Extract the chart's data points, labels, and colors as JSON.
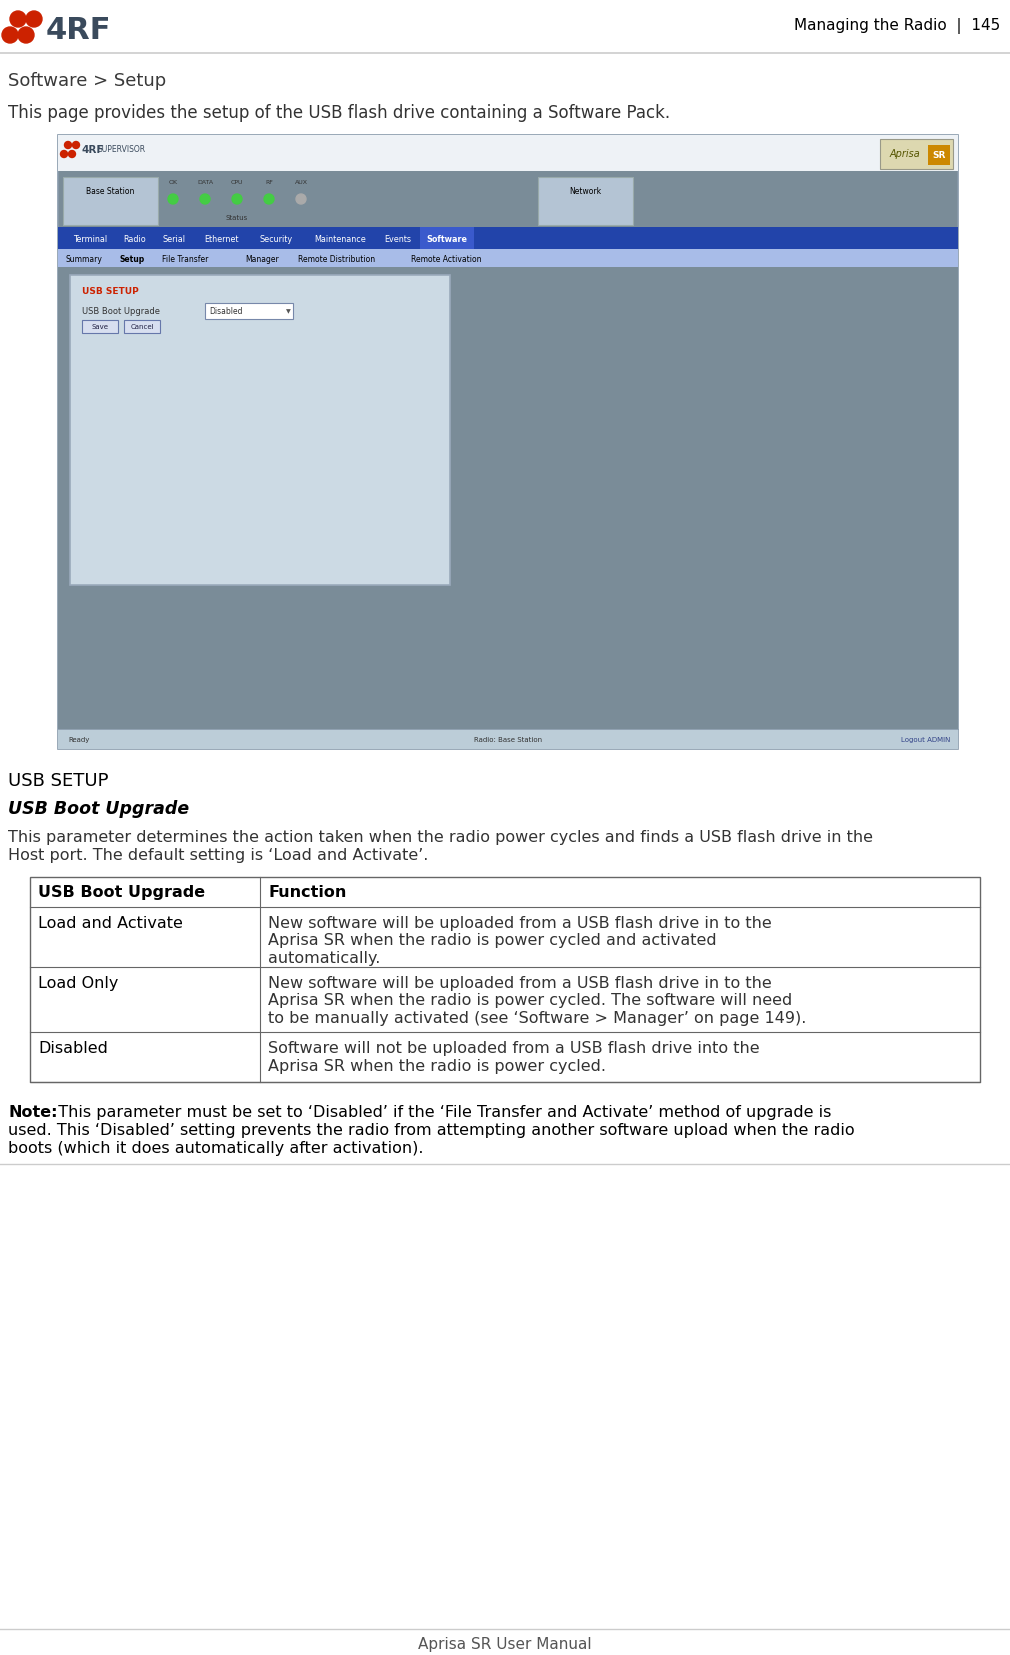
{
  "page_title_right": "Managing the Radio  |  145",
  "section_title": "Software > Setup",
  "intro_text": "This page provides the setup of the USB flash drive containing a Software Pack.",
  "usb_setup_heading": "USB SETUP",
  "usb_boot_heading": "USB Boot Upgrade",
  "desc_line1": "This parameter determines the action taken when the radio power cycles and finds a USB flash drive in the",
  "desc_line2": "Host port. The default setting is ‘Load and Activate’.",
  "table_headers": [
    "USB Boot Upgrade",
    "Function"
  ],
  "table_rows": [
    [
      "Load and Activate",
      [
        "New software will be uploaded from a USB flash drive in to the",
        "Aprisa SR when the radio is power cycled and activated",
        "automatically."
      ]
    ],
    [
      "Load Only",
      [
        "New software will be uploaded from a USB flash drive in to the",
        "Aprisa SR when the radio is power cycled. The software will need",
        "to be manually activated (see ‘Software > Manager’ on page 149)."
      ]
    ],
    [
      "Disabled",
      [
        "Software will not be uploaded from a USB flash drive into the",
        "Aprisa SR when the radio is power cycled."
      ]
    ]
  ],
  "note_lines": [
    "Note:  This parameter must be set to ‘Disabled’ if the ‘File Transfer and Activate’ method of upgrade is",
    "used. This ‘Disabled’ setting prevents the radio from attempting another software upload when the radio",
    "boots (which it does automatically after activation)."
  ],
  "footer_text": "Aprisa SR User Manual",
  "bg_color": "#ffffff",
  "text_color": "#333333",
  "red_logo_color": "#cc2200",
  "screenshot_bg": "#7a8c98",
  "screenshot_panel_bg": "#ccdae4",
  "supervisor_nav_color": "#2244aa",
  "supervisor_subnav_color": "#a8bce8",
  "footer_bar_color": "#bccdd8"
}
